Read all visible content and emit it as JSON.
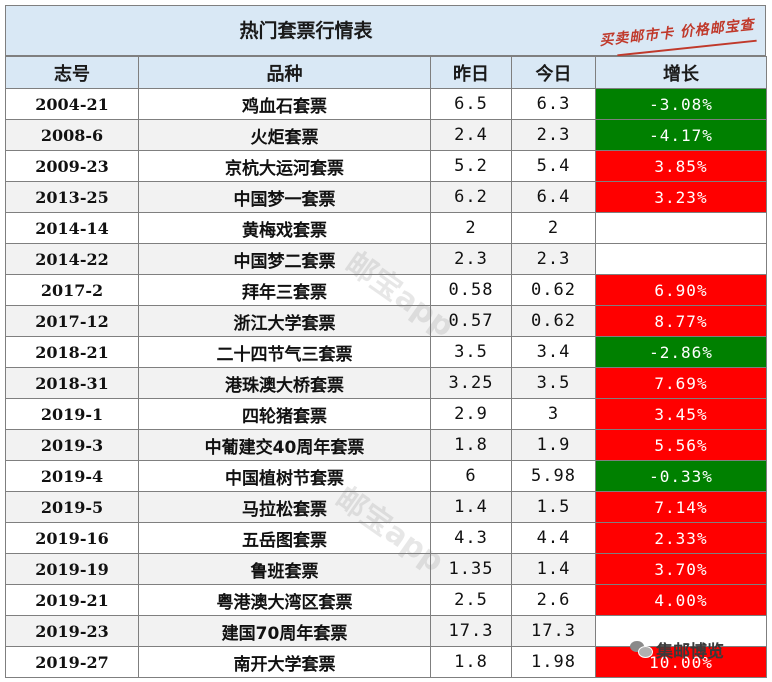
{
  "title": "热门套票行情表",
  "brand": "买卖邮市卡 价格邮宝查",
  "watermark": "邮宝app",
  "corner_logo": "集邮博览",
  "colors": {
    "up": "#ff0000",
    "down": "#008000",
    "header_bg": "#d9e8f5"
  },
  "columns": [
    "志号",
    "品种",
    "昨日",
    "今日",
    "增长"
  ],
  "rows": [
    {
      "no": "2004-21",
      "name": "鸡血石套票",
      "yesterday": "6.5",
      "today": "6.3",
      "growth": "-3.08%",
      "trend": "down"
    },
    {
      "no": "2008-6",
      "name": "火炬套票",
      "yesterday": "2.4",
      "today": "2.3",
      "growth": "-4.17%",
      "trend": "down"
    },
    {
      "no": "2009-23",
      "name": "京杭大运河套票",
      "yesterday": "5.2",
      "today": "5.4",
      "growth": "3.85%",
      "trend": "up"
    },
    {
      "no": "2013-25",
      "name": "中国梦一套票",
      "yesterday": "6.2",
      "today": "6.4",
      "growth": "3.23%",
      "trend": "up"
    },
    {
      "no": "2014-14",
      "name": "黄梅戏套票",
      "yesterday": "2",
      "today": "2",
      "growth": "",
      "trend": "none"
    },
    {
      "no": "2014-22",
      "name": "中国梦二套票",
      "yesterday": "2.3",
      "today": "2.3",
      "growth": "",
      "trend": "none"
    },
    {
      "no": "2017-2",
      "name": "拜年三套票",
      "yesterday": "0.58",
      "today": "0.62",
      "growth": "6.90%",
      "trend": "up"
    },
    {
      "no": "2017-12",
      "name": "浙江大学套票",
      "yesterday": "0.57",
      "today": "0.62",
      "growth": "8.77%",
      "trend": "up"
    },
    {
      "no": "2018-21",
      "name": "二十四节气三套票",
      "yesterday": "3.5",
      "today": "3.4",
      "growth": "-2.86%",
      "trend": "down"
    },
    {
      "no": "2018-31",
      "name": "港珠澳大桥套票",
      "yesterday": "3.25",
      "today": "3.5",
      "growth": "7.69%",
      "trend": "up"
    },
    {
      "no": "2019-1",
      "name": "四轮猪套票",
      "yesterday": "2.9",
      "today": "3",
      "growth": "3.45%",
      "trend": "up"
    },
    {
      "no": "2019-3",
      "name": "中葡建交40周年套票",
      "yesterday": "1.8",
      "today": "1.9",
      "growth": "5.56%",
      "trend": "up"
    },
    {
      "no": "2019-4",
      "name": "中国植树节套票",
      "yesterday": "6",
      "today": "5.98",
      "growth": "-0.33%",
      "trend": "down"
    },
    {
      "no": "2019-5",
      "name": "马拉松套票",
      "yesterday": "1.4",
      "today": "1.5",
      "growth": "7.14%",
      "trend": "up"
    },
    {
      "no": "2019-16",
      "name": "五岳图套票",
      "yesterday": "4.3",
      "today": "4.4",
      "growth": "2.33%",
      "trend": "up"
    },
    {
      "no": "2019-19",
      "name": "鲁班套票",
      "yesterday": "1.35",
      "today": "1.4",
      "growth": "3.70%",
      "trend": "up"
    },
    {
      "no": "2019-21",
      "name": "粤港澳大湾区套票",
      "yesterday": "2.5",
      "today": "2.6",
      "growth": "4.00%",
      "trend": "up"
    },
    {
      "no": "2019-23",
      "name": "建国70周年套票",
      "yesterday": "17.3",
      "today": "17.3",
      "growth": "",
      "trend": "none"
    },
    {
      "no": "2019-27",
      "name": "南开大学套票",
      "yesterday": "1.8",
      "today": "1.98",
      "growth": "10.00%",
      "trend": "up"
    }
  ]
}
